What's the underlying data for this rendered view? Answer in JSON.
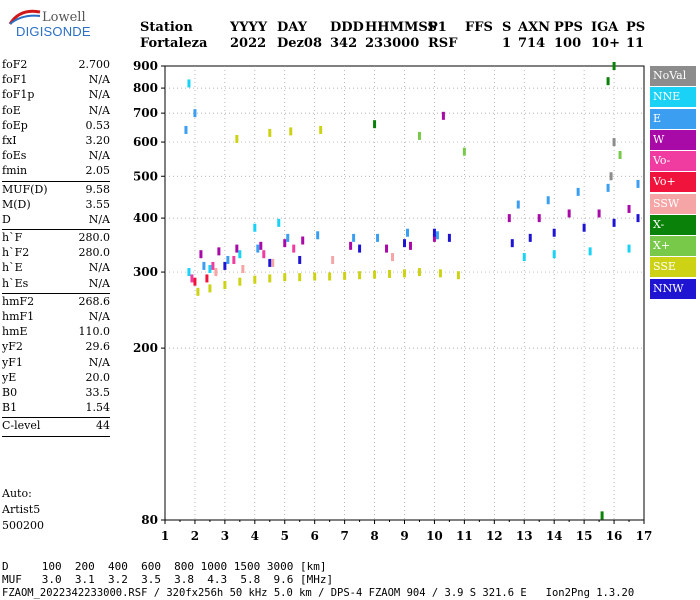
{
  "logo": {
    "line1": "Lowell",
    "line2": "DIGISONDE"
  },
  "header": {
    "row1": [
      "Station",
      "YYYY",
      "DAY",
      "DDD",
      "HHMMSS",
      "P1",
      "FFS",
      "S",
      "AXN",
      "PPS",
      "IGA",
      "PS"
    ],
    "row2": [
      "Fortaleza",
      "2022",
      "Dez08",
      "342",
      "233000",
      "RSF",
      "1",
      "714",
      "100",
      "10+",
      "11"
    ]
  },
  "params": [
    {
      "k": "foF2",
      "v": "2.700"
    },
    {
      "k": "foF1",
      "v": "N/A"
    },
    {
      "k": "foF1p",
      "v": "N/A"
    },
    {
      "k": "foE",
      "v": "N/A"
    },
    {
      "k": "foEp",
      "v": "0.53"
    },
    {
      "k": "fxI",
      "v": "3.20"
    },
    {
      "k": "foEs",
      "v": "N/A"
    },
    {
      "k": "fmin",
      "v": "2.05"
    },
    {
      "sep": true
    },
    {
      "k": "MUF(D)",
      "v": "9.58"
    },
    {
      "k": "M(D)",
      "v": "3.55"
    },
    {
      "k": "D",
      "v": "N/A"
    },
    {
      "sep": true
    },
    {
      "k": "h`F",
      "v": "280.0"
    },
    {
      "k": "h`F2",
      "v": "280.0"
    },
    {
      "k": "h`E",
      "v": "N/A"
    },
    {
      "k": "h`Es",
      "v": "N/A"
    },
    {
      "sep": true
    },
    {
      "k": "hmF2",
      "v": "268.6"
    },
    {
      "k": "hmF1",
      "v": "N/A"
    },
    {
      "k": "hmE",
      "v": "110.0"
    },
    {
      "k": "yF2",
      "v": "29.6"
    },
    {
      "k": "yF1",
      "v": "N/A"
    },
    {
      "k": "yE",
      "v": "20.0"
    },
    {
      "k": "B0",
      "v": "33.5"
    },
    {
      "k": "B1",
      "v": "1.54"
    },
    {
      "sep": true
    },
    {
      "k": "C-level",
      "v": "44"
    },
    {
      "sep": true
    }
  ],
  "auto": [
    "Auto:",
    "Artist5",
    "500200"
  ],
  "footer": {
    "line1": "D     100  200  400  600  800 1000 1500 3000 [km]",
    "line2": "MUF   3.0  3.1  3.2  3.5  3.8  4.3  5.8  9.6 [MHz]",
    "line3": "FZAOM_2022342233000.RSF / 320fx256h 50 kHz 5.0 km / DPS-4 FZAOM 904 / 3.9 S 321.6 E   Ion2Png 1.3.20"
  },
  "legend": [
    {
      "label": "NoVal",
      "color": "#8c8c8c"
    },
    {
      "label": "NNE",
      "color": "#19d2f5"
    },
    {
      "label": "E",
      "color": "#3c9ef0"
    },
    {
      "label": "W",
      "color": "#a80aa8"
    },
    {
      "label": "Vo-",
      "color": "#f03ca0"
    },
    {
      "label": "Vo+",
      "color": "#f0143c"
    },
    {
      "label": "SSW",
      "color": "#f5a5a5"
    },
    {
      "label": "X-",
      "color": "#0a820a"
    },
    {
      "label": "X+",
      "color": "#78c84a"
    },
    {
      "label": "SSE",
      "color": "#cdd214"
    },
    {
      "label": "NNW",
      "color": "#1e14d2"
    }
  ],
  "chart_data": {
    "type": "scatter",
    "title": "",
    "xlabel": "",
    "ylabel": "",
    "xlim": [
      1,
      17
    ],
    "ylim": [
      80,
      900
    ],
    "yscale": "log",
    "xticks": [
      1,
      2,
      3,
      4,
      5,
      6,
      7,
      8,
      9,
      10,
      11,
      12,
      13,
      14,
      15,
      16,
      17
    ],
    "yticks": [
      80,
      200,
      300,
      400,
      500,
      600,
      700,
      800,
      900
    ],
    "grid": true,
    "legend_position": "right",
    "series": [
      {
        "name": "SSE",
        "x": [
          2.1,
          2.5,
          3.0,
          3.5,
          4.0,
          4.5,
          5.0,
          5.5,
          6.0,
          6.5,
          7.0,
          7.5,
          8.0,
          8.5,
          9.0,
          9.5,
          10.2,
          10.8,
          4.5,
          5.2,
          6.2,
          3.4
        ],
        "y": [
          270,
          275,
          280,
          285,
          288,
          290,
          292,
          292,
          293,
          293,
          294,
          295,
          296,
          297,
          298,
          300,
          298,
          295,
          630,
          635,
          640,
          610
        ]
      },
      {
        "name": "W",
        "x": [
          2.2,
          2.8,
          3.4,
          4.2,
          5.0,
          5.6,
          7.2,
          8.4,
          9.2,
          10.0,
          12.5,
          13.5,
          14.5,
          15.5,
          16.5,
          10.3
        ],
        "y": [
          330,
          335,
          340,
          345,
          350,
          355,
          345,
          340,
          345,
          360,
          400,
          400,
          410,
          410,
          420,
          690
        ]
      },
      {
        "name": "NNW",
        "x": [
          3.0,
          4.5,
          5.5,
          7.5,
          9.0,
          10.0,
          10.5,
          12.6,
          13.2,
          14.0,
          15.0,
          16.0,
          16.8
        ],
        "y": [
          310,
          315,
          320,
          340,
          350,
          370,
          360,
          350,
          360,
          370,
          380,
          390,
          400
        ]
      },
      {
        "name": "NNE",
        "x": [
          1.8,
          2.5,
          3.5,
          4.0,
          4.8,
          13.0,
          14.0,
          15.2,
          16.5,
          1.8
        ],
        "y": [
          300,
          305,
          330,
          380,
          390,
          325,
          330,
          335,
          340,
          820
        ]
      },
      {
        "name": "E",
        "x": [
          2.3,
          3.1,
          4.1,
          5.1,
          6.1,
          7.3,
          8.1,
          9.1,
          10.1,
          12.8,
          13.8,
          14.8,
          15.8,
          16.8,
          1.7,
          2.0
        ],
        "y": [
          310,
          320,
          340,
          360,
          365,
          360,
          360,
          370,
          365,
          430,
          440,
          460,
          470,
          480,
          640,
          700
        ]
      },
      {
        "name": "Vo-",
        "x": [
          1.9,
          2.6,
          3.3,
          4.3,
          5.3
        ],
        "y": [
          290,
          310,
          320,
          330,
          340
        ]
      },
      {
        "name": "Vo+",
        "x": [
          2.0,
          2.4
        ],
        "y": [
          285,
          290
        ]
      },
      {
        "name": "SSW",
        "x": [
          2.7,
          3.6,
          4.6,
          6.6,
          8.6
        ],
        "y": [
          300,
          305,
          315,
          320,
          325
        ]
      },
      {
        "name": "X-",
        "x": [
          8.0,
          16.0,
          15.8,
          15.6
        ],
        "y": [
          660,
          900,
          830,
          82
        ]
      },
      {
        "name": "X+",
        "x": [
          9.5,
          11.0,
          16.2
        ],
        "y": [
          620,
          570,
          560
        ]
      },
      {
        "name": "NoVal",
        "x": [
          15.9,
          16.0
        ],
        "y": [
          500,
          600
        ]
      }
    ]
  }
}
